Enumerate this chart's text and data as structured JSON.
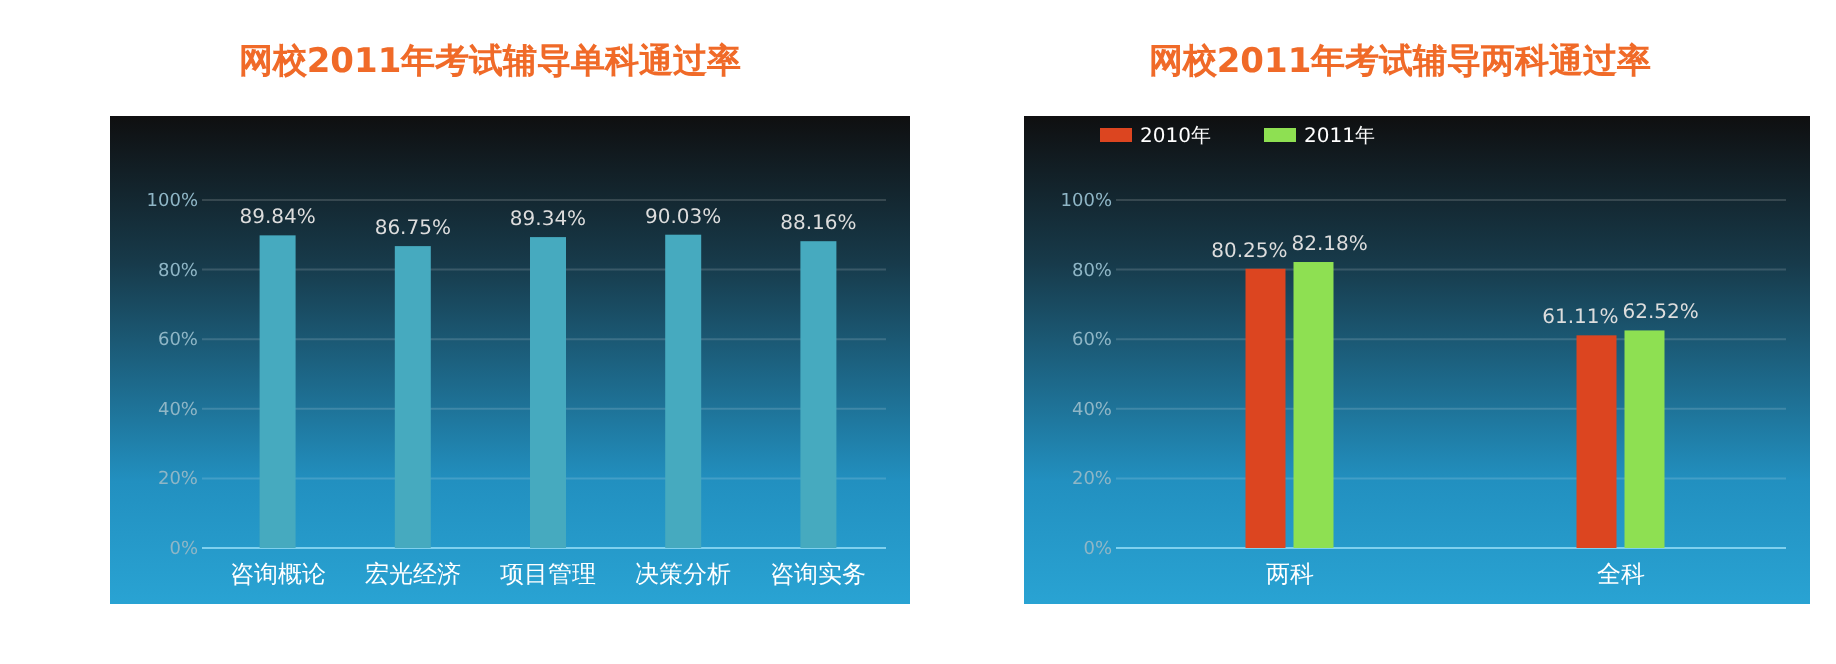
{
  "chart_data": [
    {
      "type": "bar",
      "title": "网校2011年考试辅导单科通过率",
      "categories": [
        "咨询概论",
        "宏光经济",
        "项目管理",
        "决策分析",
        "咨询实务"
      ],
      "series": [
        {
          "color": "#46aabf",
          "values": [
            89.84,
            86.75,
            89.34,
            90.03,
            88.16
          ],
          "value_labels": [
            "89.84%",
            "86.75%",
            "89.34%",
            "90.03%",
            "88.16%"
          ]
        }
      ],
      "ylim": [
        0,
        100
      ],
      "yticks": [
        {
          "value": 0,
          "label": "0%"
        },
        {
          "value": 20,
          "label": "20%"
        },
        {
          "value": 40,
          "label": "40%"
        },
        {
          "value": 60,
          "label": "60%"
        },
        {
          "value": 80,
          "label": "80%"
        },
        {
          "value": 100,
          "label": "100%"
        }
      ],
      "grid": "y",
      "legend": false
    },
    {
      "type": "bar",
      "title": "网校2011年考试辅导两科通过率",
      "categories": [
        "两科",
        "全科"
      ],
      "series": [
        {
          "name": "2010年",
          "color": "#dc4520",
          "values": [
            80.25,
            61.11
          ],
          "value_labels": [
            "80.25%",
            "61.11%"
          ]
        },
        {
          "name": "2011年",
          "color": "#8ee052",
          "values": [
            82.18,
            62.52
          ],
          "value_labels": [
            "82.18%",
            "62.52%"
          ]
        }
      ],
      "ylim": [
        0,
        100
      ],
      "yticks": [
        {
          "value": 0,
          "label": "0%"
        },
        {
          "value": 20,
          "label": "20%"
        },
        {
          "value": 40,
          "label": "40%"
        },
        {
          "value": 60,
          "label": "60%"
        },
        {
          "value": 80,
          "label": "80%"
        },
        {
          "value": 100,
          "label": "100%"
        }
      ],
      "grid": "y",
      "legend": "top left"
    }
  ]
}
